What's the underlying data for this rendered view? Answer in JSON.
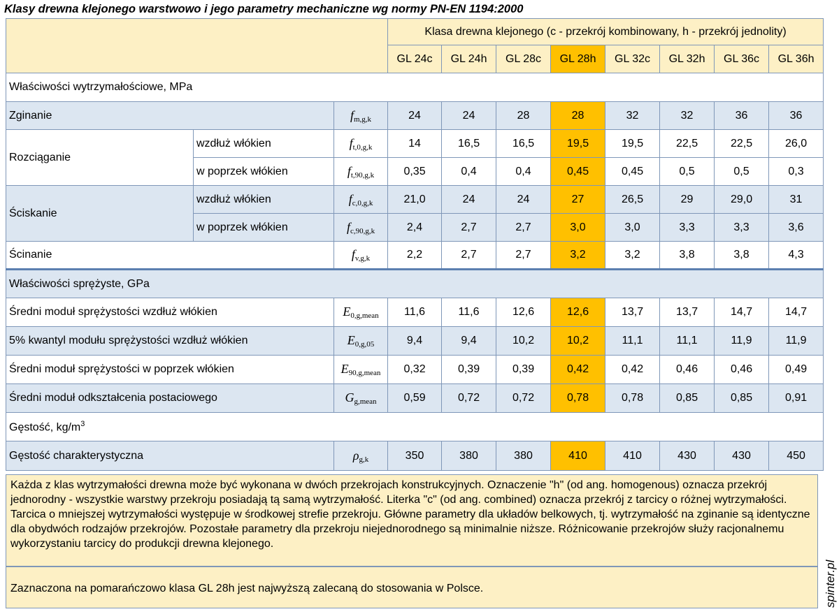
{
  "title": "Klasy drewna klejonego warstwowo i jego parametry mechaniczne wg normy PN-EN 1194:2000",
  "watermark": "spinter.pl",
  "header": {
    "group_label": "Klasa drewna klejonego (c - przekrój kombinowany, h - przekrój jednolity)",
    "classes": [
      "GL 24c",
      "GL 24h",
      "GL 28c",
      "GL 28h",
      "GL 32c",
      "GL 32h",
      "GL 36c",
      "GL 36h"
    ],
    "highlight_class": "GL 28h"
  },
  "colors": {
    "highlight": "#ffc000",
    "header_bg": "#fdf0c5",
    "row_blue": "#dce6f1",
    "border": "#7f97b8"
  },
  "sections": {
    "strength": "Właściwości wytrzymałościowe, MPa",
    "elastic": "Właściwości sprężyste, GPa",
    "density": "Gęstość, kg/m",
    "density_sup": "3"
  },
  "rows": {
    "zginanie": {
      "label": "Zginanie",
      "sym": "f",
      "sub": "m,g,k",
      "values": [
        "24",
        "24",
        "28",
        "28",
        "32",
        "32",
        "36",
        "36"
      ]
    },
    "rozciaganie": {
      "label": "Rozciąganie"
    },
    "rozc_wzdluz": {
      "label": "wzdłuż włókien",
      "sym": "f",
      "sub": "t,0,g,k",
      "values": [
        "14",
        "16,5",
        "16,5",
        "19,5",
        "19,5",
        "22,5",
        "22,5",
        "26,0"
      ]
    },
    "rozc_poprzek": {
      "label": "w poprzek włókien",
      "sym": "f",
      "sub": "t,90,g,k",
      "values": [
        "0,35",
        "0,4",
        "0,4",
        "0,45",
        "0,45",
        "0,5",
        "0,5",
        "0,3"
      ]
    },
    "sciskanie": {
      "label": "Ściskanie"
    },
    "scis_wzdluz": {
      "label": "wzdłuż włókien",
      "sym": "f",
      "sub": "c,0,g,k",
      "values": [
        "21,0",
        "24",
        "24",
        "27",
        "26,5",
        "29",
        "29,0",
        "31"
      ]
    },
    "scis_poprzek": {
      "label": "w poprzek włókien",
      "sym": "f",
      "sub": "c,90,g,k",
      "values": [
        "2,4",
        "2,7",
        "2,7",
        "3,0",
        "3,0",
        "3,3",
        "3,3",
        "3,6"
      ]
    },
    "scinanie": {
      "label": "Ścinanie",
      "sym": "f",
      "sub": "v,g,k",
      "values": [
        "2,2",
        "2,7",
        "2,7",
        "3,2",
        "3,2",
        "3,8",
        "3,8",
        "4,3"
      ]
    },
    "modul_wzdluz": {
      "label": "Średni moduł sprężystości wzdłuż włókien",
      "sym": "E",
      "sub": "0,g,mean",
      "values": [
        "11,6",
        "11,6",
        "12,6",
        "12,6",
        "13,7",
        "13,7",
        "14,7",
        "14,7"
      ]
    },
    "kwantyl": {
      "label": "5% kwantyl modułu sprężystości wzdłuż włókien",
      "sym": "E",
      "sub": "0,g,05",
      "values": [
        "9,4",
        "9,4",
        "10,2",
        "10,2",
        "11,1",
        "11,1",
        "11,9",
        "11,9"
      ]
    },
    "modul_poprzek": {
      "label": "Średni moduł sprężystości w poprzek włókien",
      "sym": "E",
      "sub": "90,g,mean",
      "values": [
        "0,32",
        "0,39",
        "0,39",
        "0,42",
        "0,42",
        "0,46",
        "0,46",
        "0,49"
      ]
    },
    "odksztalcenie": {
      "label": "Średni moduł odkształcenia postaciowego",
      "sym": "G",
      "sub": "g,mean",
      "values": [
        "0,59",
        "0,72",
        "0,72",
        "0,78",
        "0,78",
        "0,85",
        "0,85",
        "0,91"
      ]
    },
    "gestosc": {
      "label": "Gęstość charakterystyczna",
      "sym": "ρ",
      "sub": "g,k",
      "values": [
        "350",
        "380",
        "380",
        "410",
        "410",
        "430",
        "430",
        "450"
      ]
    }
  },
  "notes": {
    "main": "Każda z klas wytrzymałości drewna może być wykonana w dwóch przekrojach konstrukcyjnych. Oznaczenie \"h\" (od ang. homogenous) oznacza przekrój jednorodny - wszystkie warstwy przekroju posiadają tą samą wytrzymałość. Literka \"c\" (od ang. combined) oznacza przekrój z tarcicy o różnej wytrzymałości. Tarcica o mniejszej wytrzymałości występuje w środkowej strefie przekroju. Główne parametry dla układów belkowych, tj. wytrzymałość na zginanie są identyczne dla obydwóch rodzajów przekrojów. Pozostałe parametry dla przekroju niejednorodnego są minimalnie niższe. Różnicowanie przekrojów służy racjonalnemu wykorzystaniu tarcicy do produkcji drewna klejonego.",
    "highlight": "Zaznaczona na pomarańczowo klasa GL 28h jest najwyższą zalecaną do stosowania w Polsce."
  }
}
